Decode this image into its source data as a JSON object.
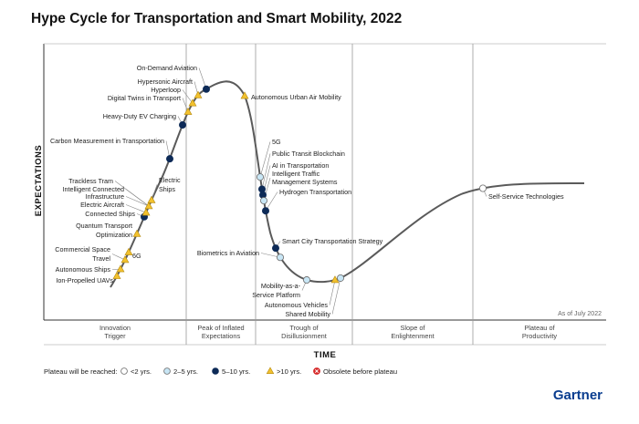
{
  "title": "Hype Cycle for Transportation and Smart Mobility, 2022",
  "brand": "Gartner",
  "colors": {
    "lt2": "#ffffff",
    "y2to5": "#c8e6f5",
    "y5to10": "#0d2a57",
    "gt10": "#f2c12e",
    "obsolete": "#d62828",
    "curve": "#555555",
    "divider": "#999999"
  },
  "chart_data": {
    "type": "scatter",
    "title": "Hype Cycle for Transportation and Smart Mobility, 2022",
    "xlabel": "TIME",
    "ylabel": "EXPECTATIONS",
    "as_of": "As of July 2022",
    "phases": [
      {
        "lines": [
          "Innovation",
          "Trigger"
        ]
      },
      {
        "lines": [
          "Peak of Inflated",
          "Expectations"
        ]
      },
      {
        "lines": [
          "Trough of",
          "Disillusionment"
        ]
      },
      {
        "lines": [
          "Slope of",
          "Enlightenment"
        ]
      },
      {
        "lines": [
          "Plateau of",
          "Productivity"
        ]
      }
    ],
    "technologies": [
      {
        "name": "Ion-Propelled UAVs",
        "x": 128,
        "plateau": ">10"
      },
      {
        "name": "Autonomous Ships",
        "x": 132,
        "plateau": ">10"
      },
      {
        "name": "Commercial Space Travel",
        "x": 137,
        "plateau": ">10"
      },
      {
        "name": "6G",
        "x": 141,
        "plateau": ">10"
      },
      {
        "name": "Quantum Transport Optimization",
        "x": 150,
        "plateau": ">10"
      },
      {
        "name": "Connected Ships",
        "x": 158,
        "plateau": "5-10"
      },
      {
        "name": "Electric Aircraft",
        "x": 160,
        "plateau": ">10"
      },
      {
        "name": "Infrastructure",
        "x": 163,
        "plateau": ">10"
      },
      {
        "name": "Electric Ships",
        "x": 166,
        "plateau": ">10"
      },
      {
        "name": "Carbon Measurement in Transportation",
        "x": 186,
        "plateau": "5-10"
      },
      {
        "name": "Heavy-Duty EV Charging",
        "x": 200,
        "plateau": "5-10"
      },
      {
        "name": "Digital Twins in Transport",
        "x": 206,
        "plateau": ">10"
      },
      {
        "name": "Hyperloop",
        "x": 211,
        "plateau": ">10"
      },
      {
        "name": "Hypersonic Aircraft",
        "x": 217,
        "plateau": ">10"
      },
      {
        "name": "On-Demand Aviation",
        "x": 226,
        "plateau": "5-10"
      },
      {
        "name": "Autonomous Urban Air Mobility",
        "x": 268,
        "plateau": ">10"
      },
      {
        "name": "5G",
        "x": 285,
        "plateau": "2-5"
      },
      {
        "name": "Public Transit Blockchain",
        "x": 287,
        "plateau": "5-10"
      },
      {
        "name": "AI in Transportation",
        "x": 288,
        "plateau": "5-10"
      },
      {
        "name": "Intelligent Traffic Management Systems",
        "x": 289,
        "plateau": "2-5"
      },
      {
        "name": "Hydrogen Transportation",
        "x": 291,
        "plateau": "5-10"
      },
      {
        "name": "Smart City Transportation Strategy",
        "x": 302,
        "plateau": "5-10"
      },
      {
        "name": "Biometrics in Aviation",
        "x": 307,
        "plateau": "2-5"
      },
      {
        "name": "Mobility-as-a-Service Platform",
        "x": 336,
        "plateau": "2-5"
      },
      {
        "name": "Autonomous Vehicles",
        "x": 367,
        "plateau": ">10"
      },
      {
        "name": "Shared Mobility",
        "x": 373,
        "plateau": "2-5"
      },
      {
        "name": "Self-Service Technologies",
        "x": 529,
        "plateau": "<2"
      }
    ],
    "extra_labels": [
      {
        "text": "Trackless Tram"
      },
      {
        "text": "Intelligent Connected"
      }
    ],
    "legend": {
      "title": "Plateau will be reached:",
      "items": [
        {
          "key": "<2",
          "label": "<2 yrs."
        },
        {
          "key": "2-5",
          "label": "2–5 yrs."
        },
        {
          "key": "5-10",
          "label": "5–10 yrs."
        },
        {
          "key": ">10",
          "label": ">10 yrs."
        },
        {
          "key": "obsolete",
          "label": "Obsolete before plateau"
        }
      ]
    }
  }
}
